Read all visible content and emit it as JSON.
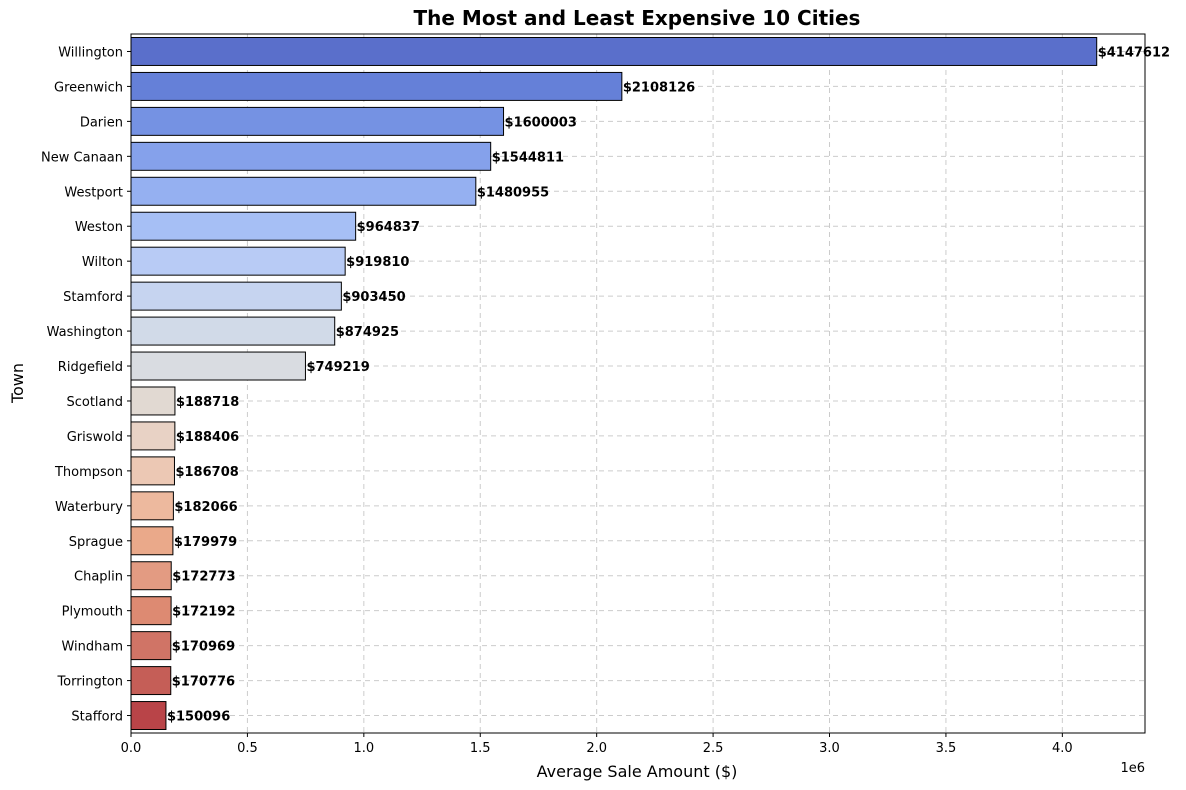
{
  "chart_data": {
    "type": "bar",
    "orientation": "horizontal",
    "title": "The Most and Least Expensive 10 Cities",
    "xlabel": "Average Sale Amount ($)",
    "ylabel": "Town",
    "x_offset_text": "1e6",
    "xlim": [
      0,
      4354993
    ],
    "xticks": [
      0,
      500000,
      1000000,
      1500000,
      2000000,
      2500000,
      3000000,
      3500000,
      4000000
    ],
    "xtick_labels": [
      "0.0",
      "0.5",
      "1.0",
      "1.5",
      "2.0",
      "2.5",
      "3.0",
      "3.5",
      "4.0"
    ],
    "grid": true,
    "categories": [
      "Willington",
      "Greenwich",
      "Darien",
      "New Canaan",
      "Westport",
      "Weston",
      "Wilton",
      "Stamford",
      "Washington",
      "Ridgefield",
      "Scotland",
      "Griswold",
      "Thompson",
      "Waterbury",
      "Sprague",
      "Chaplin",
      "Plymouth",
      "Windham",
      "Torrington",
      "Stafford"
    ],
    "values": [
      4147612,
      2108126,
      1600003,
      1544811,
      1480955,
      964837,
      919810,
      903450,
      874925,
      749219,
      188718,
      188406,
      186708,
      182066,
      179979,
      172773,
      172192,
      170969,
      170776,
      150096
    ],
    "data_labels": [
      "$4147612",
      "$2108126",
      "$1600003",
      "$1544811",
      "$1480955",
      "$964837",
      "$919810",
      "$903450",
      "$874925",
      "$749219",
      "$188718",
      "$188406",
      "$186708",
      "$182066",
      "$179979",
      "$172773",
      "$172192",
      "$170969",
      "$170776",
      "$150096"
    ],
    "colors": [
      "#5a6fcb",
      "#6580d8",
      "#7592e3",
      "#85a1eb",
      "#95b0f1",
      "#a6bff5",
      "#b8cbf5",
      "#c6d4f0",
      "#d1dae8",
      "#d9dce1",
      "#e1d9d2",
      "#e8d2c5",
      "#ecc8b4",
      "#edb99e",
      "#eaa98a",
      "#e39b82",
      "#dd8a72",
      "#d07466",
      "#c55e57",
      "#b94448"
    ]
  }
}
